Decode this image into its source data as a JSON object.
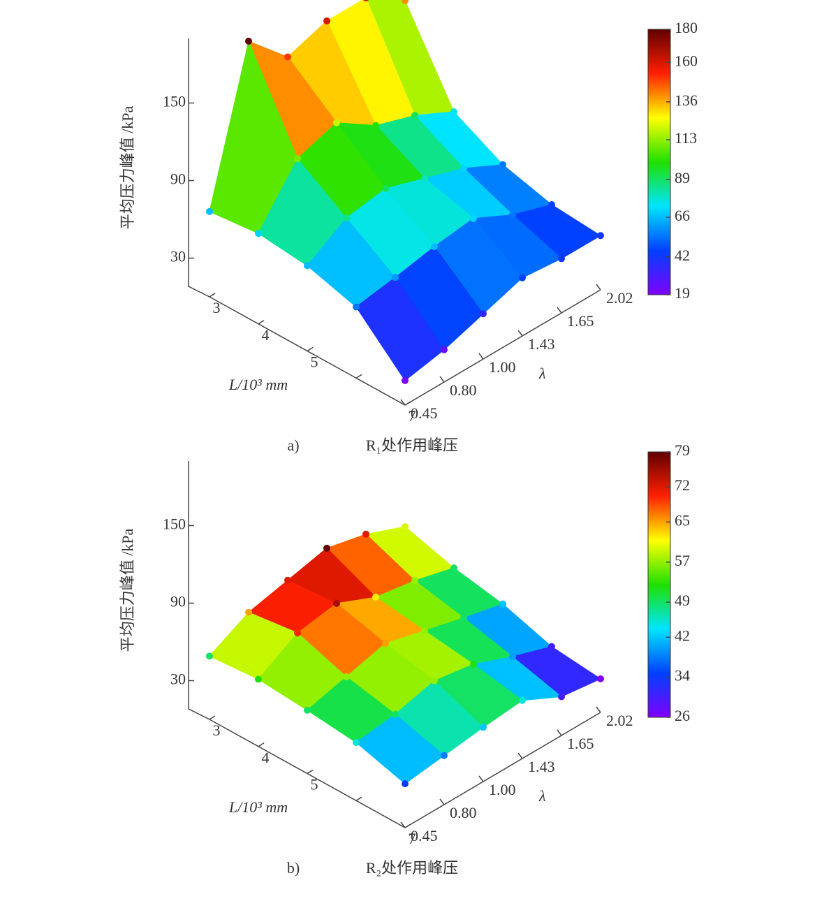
{
  "chart_data": [
    {
      "type": "surface",
      "caption_label": "a)",
      "caption": "R₁处作用峰压",
      "zlabel": "平均压力峰值 /kPa",
      "xlabel": "L/10³ mm",
      "ylabel": "λ",
      "x_categories": [
        3,
        4,
        5,
        null,
        7
      ],
      "y_categories": [
        "0.45",
        "0.80",
        "1.00",
        "1.43",
        "1.65",
        "2.02"
      ],
      "values": [
        [
          66,
          180,
          150,
          160,
          160,
          140
        ],
        [
          70,
          110,
          120,
          100,
          90,
          75
        ],
        [
          66,
          85,
          90,
          80,
          70,
          55
        ],
        [
          55,
          60,
          66,
          70,
          55,
          45
        ],
        [
          19,
          25,
          35,
          45,
          42,
          42
        ]
      ],
      "zlim": [
        0,
        200
      ],
      "zticks": [
        30,
        90,
        150
      ],
      "clim": [
        19,
        180
      ],
      "cticks": [
        19,
        42,
        66,
        89,
        113,
        136,
        160,
        180
      ],
      "colormap": [
        "#7f00ff",
        "#0040ff",
        "#00e5ff",
        "#20e000",
        "#ffff00",
        "#ff2000",
        "#600000"
      ]
    },
    {
      "type": "surface",
      "caption_label": "b)",
      "caption": "R₂处作用峰压",
      "zlabel": "平均压力峰值 /kPa",
      "xlabel": "L/10³ mm",
      "ylabel": "λ",
      "x_categories": [
        3,
        4,
        5,
        null,
        7
      ],
      "y_categories": [
        "0.45",
        "0.80",
        "1.00",
        "1.43",
        "1.65",
        "2.02"
      ],
      "values": [
        [
          49,
          65,
          72,
          79,
          72,
          60
        ],
        [
          52,
          70,
          75,
          62,
          57,
          49
        ],
        [
          49,
          57,
          65,
          57,
          49,
          42
        ],
        [
          45,
          49,
          57,
          52,
          40,
          30
        ],
        [
          34,
          38,
          42,
          45,
          30,
          26
        ]
      ],
      "zlim": [
        0,
        200
      ],
      "zticks": [
        30,
        90,
        150
      ],
      "clim": [
        26,
        79
      ],
      "cticks": [
        26,
        34,
        42,
        49,
        57,
        65,
        72,
        79
      ],
      "colormap": [
        "#7f00ff",
        "#0040ff",
        "#00e5ff",
        "#20e000",
        "#ffff00",
        "#ff2000",
        "#600000"
      ]
    }
  ]
}
